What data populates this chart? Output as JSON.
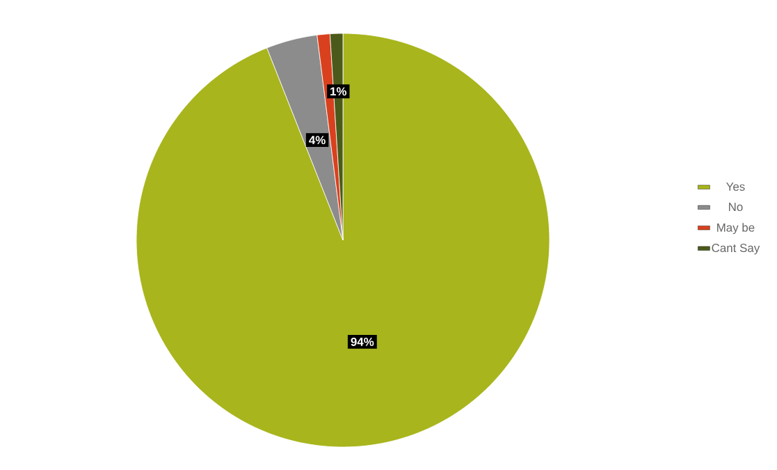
{
  "chart_data": {
    "type": "pie",
    "categories": [
      "Yes",
      "No",
      "May be",
      "Cant Say"
    ],
    "values": [
      94,
      4,
      1,
      1
    ],
    "colors": [
      "#a8b51c",
      "#8c8c8c",
      "#d9411e",
      "#4b5a1a"
    ],
    "value_labels": [
      "94%",
      "4%",
      null,
      "1%"
    ],
    "legend": "right"
  }
}
